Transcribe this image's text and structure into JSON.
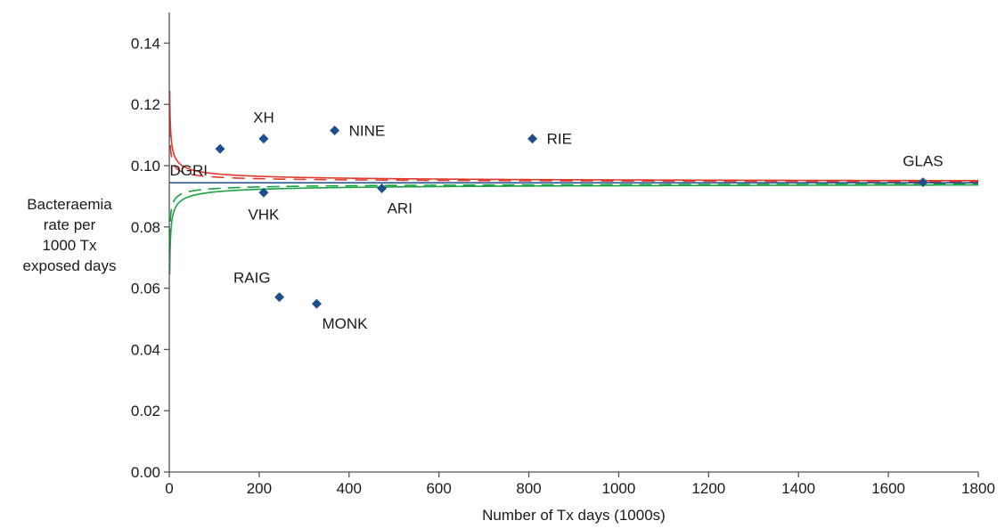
{
  "chart_data": {
    "type": "scatter",
    "title": "",
    "xlabel": "Number of Tx days (1000s)",
    "ylabel_lines": [
      "Bacteraemia",
      "rate per",
      "1000 Tx",
      "exposed days"
    ],
    "xlim": [
      0,
      1800
    ],
    "ylim": [
      0,
      0.15
    ],
    "x_ticks": [
      0,
      200,
      400,
      600,
      800,
      1000,
      1200,
      1400,
      1600,
      1800
    ],
    "x_tick_labels": [
      "0",
      "200",
      "400",
      "600",
      "800",
      "1000",
      "1200",
      "1400",
      "1600",
      "1800"
    ],
    "y_ticks": [
      0,
      0.02,
      0.04,
      0.06,
      0.08,
      0.1,
      0.12,
      0.14
    ],
    "y_tick_labels": [
      "0.00",
      "0.02",
      "0.04",
      "0.06",
      "0.08",
      "0.10",
      "0.12",
      "0.14"
    ],
    "grid": false,
    "mean_rate": 0.0944,
    "limits": [
      {
        "band": "upper-outer",
        "color": "#e03a2f",
        "style": "solid",
        "z": 3.09
      },
      {
        "band": "upper-inner",
        "color": "#e03a2f",
        "style": "dashed-dotted",
        "z": 1.96
      },
      {
        "band": "lower-inner",
        "color": "#1aa344",
        "style": "dashed",
        "z": 1.96
      },
      {
        "band": "lower-outer",
        "color": "#1aa344",
        "style": "solid",
        "z": 3.09
      }
    ],
    "points": [
      {
        "label": "DGRI",
        "x": 113,
        "y": 0.1055,
        "label_pos": "below-left"
      },
      {
        "label": "XH",
        "x": 210,
        "y": 0.1088,
        "label_pos": "above"
      },
      {
        "label": "VHK",
        "x": 210,
        "y": 0.0912,
        "label_pos": "below"
      },
      {
        "label": "NINE",
        "x": 368,
        "y": 0.1115,
        "label_pos": "right"
      },
      {
        "label": "ARI",
        "x": 473,
        "y": 0.0926,
        "label_pos": "below-right"
      },
      {
        "label": "RIE",
        "x": 808,
        "y": 0.1088,
        "label_pos": "right"
      },
      {
        "label": "GLAS",
        "x": 1677,
        "y": 0.0946,
        "label_pos": "above"
      },
      {
        "label": "RAIG",
        "x": 245,
        "y": 0.0571,
        "label_pos": "above-left"
      },
      {
        "label": "MONK",
        "x": 328,
        "y": 0.0549,
        "label_pos": "below-right"
      }
    ],
    "colors": {
      "points": "#1f4e8c",
      "mean_line": "#1f4e8c",
      "axis": "#555555"
    }
  }
}
